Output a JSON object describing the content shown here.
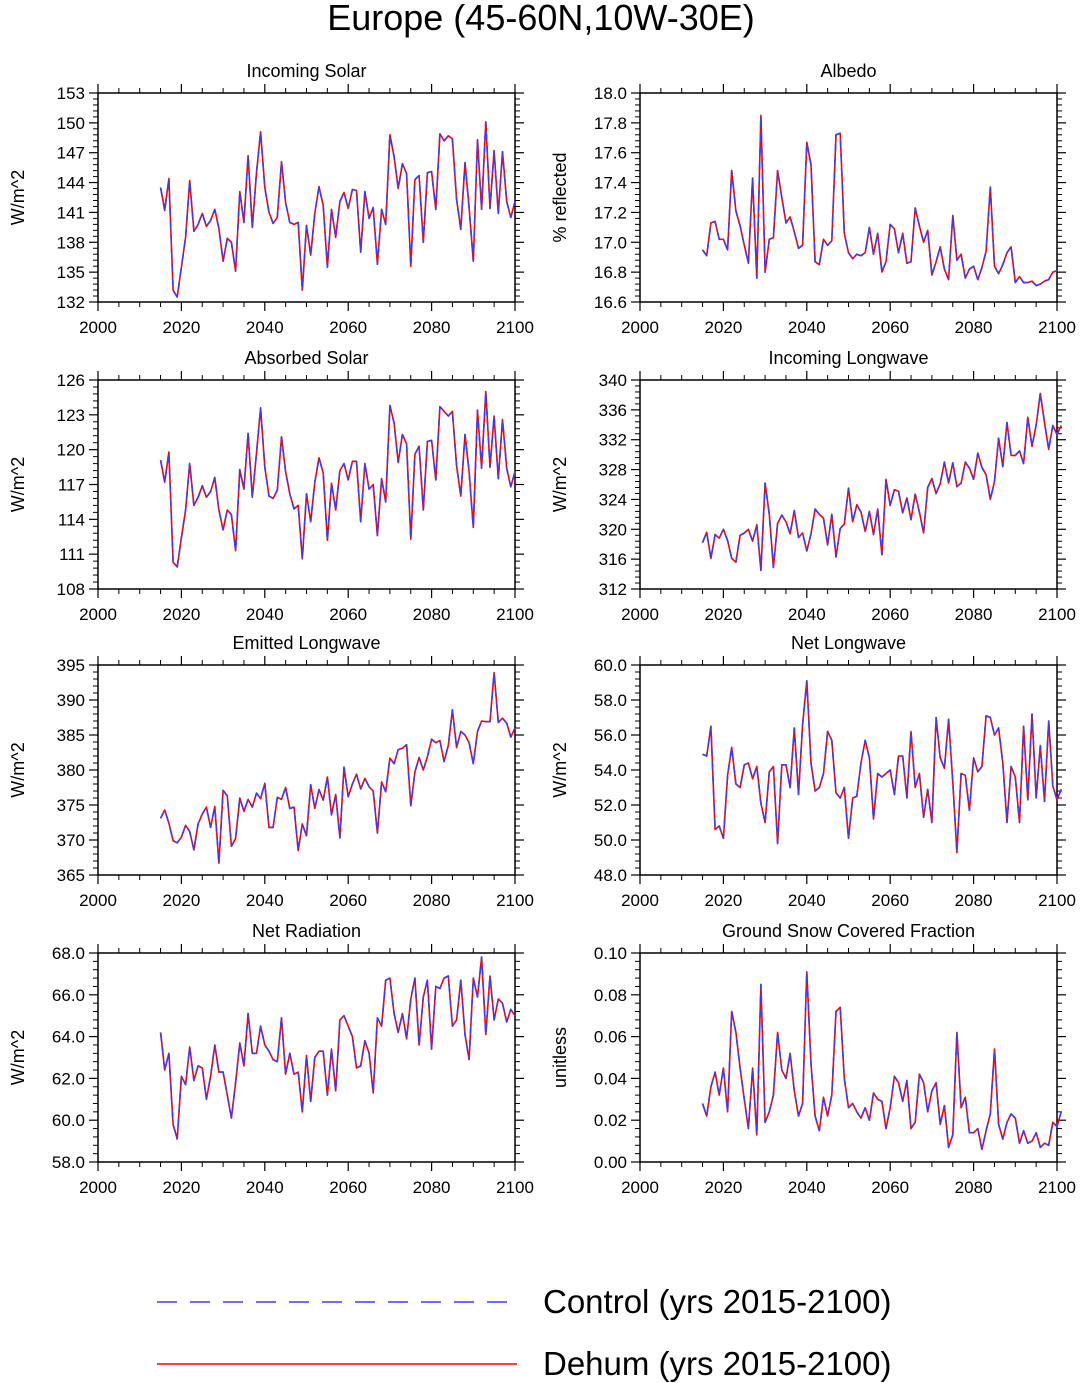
{
  "figure": {
    "title": "Europe (45-60N,10W-30E)"
  },
  "legend": {
    "entries": [
      {
        "label": "Control (yrs 2015-2100)",
        "color": "#3b3bff",
        "style": "dashed"
      },
      {
        "label": "Dehum (yrs 2015-2100)",
        "color": "#ff0000",
        "style": "solid"
      }
    ]
  },
  "chart_data": [
    {
      "type": "line",
      "title": "Incoming Solar",
      "ylabel": "W/m^2",
      "xlim": [
        2000,
        2100
      ],
      "ylim": [
        132,
        153
      ],
      "yticks": [
        132,
        135,
        138,
        141,
        144,
        147,
        150,
        153
      ],
      "ytick_labels": [
        "132",
        "135",
        "138",
        "141",
        "144",
        "147",
        "150",
        "153"
      ],
      "xticks": [
        2000,
        2020,
        2040,
        2060,
        2080,
        2100
      ],
      "x_start": 2015,
      "values": [
        143.5,
        141.2,
        144.4,
        133.2,
        132.5,
        135.5,
        138.5,
        144.2,
        139.1,
        139.8,
        140.9,
        139.6,
        140.2,
        141.3,
        139.4,
        136.1,
        138.4,
        138.0,
        135.1,
        143.1,
        140.0,
        146.7,
        139.5,
        145.0,
        149.1,
        143.5,
        141.0,
        139.9,
        140.5,
        146.1,
        142.0,
        140.0,
        139.8,
        140.0,
        133.2,
        139.7,
        136.7,
        140.9,
        143.6,
        141.7,
        135.5,
        141.3,
        138.5,
        142.1,
        143.0,
        141.4,
        143.3,
        143.2,
        137.0,
        143.1,
        140.4,
        141.5,
        135.8,
        141.3,
        139.8,
        148.8,
        146.6,
        143.4,
        145.9,
        144.9,
        135.6,
        144.3,
        144.7,
        138.0,
        145.0,
        145.1,
        141.3,
        148.9,
        148.2,
        148.7,
        148.4,
        142.3,
        139.3,
        146.0,
        141.5,
        136.1,
        148.3,
        141.3,
        150.1,
        141.4,
        147.2,
        140.9,
        147.1,
        142.1,
        140.5,
        142.1
      ]
    },
    {
      "type": "line",
      "title": "Albedo",
      "ylabel": "% reflected",
      "xlim": [
        2000,
        2100
      ],
      "ylim": [
        16.6,
        18.0
      ],
      "yticks": [
        16.6,
        16.8,
        17.0,
        17.2,
        17.4,
        17.6,
        17.8,
        18.0
      ],
      "ytick_labels": [
        "16.6",
        "16.8",
        "17.0",
        "17.2",
        "17.4",
        "17.6",
        "17.8",
        "18.0"
      ],
      "xticks": [
        2000,
        2020,
        2040,
        2060,
        2080,
        2100
      ],
      "x_start": 2015,
      "values": [
        16.95,
        16.91,
        17.13,
        17.14,
        17.02,
        17.02,
        16.95,
        17.48,
        17.21,
        17.11,
        16.98,
        16.86,
        17.43,
        16.76,
        17.85,
        16.8,
        17.02,
        17.03,
        17.48,
        17.3,
        17.13,
        17.17,
        17.07,
        16.96,
        16.98,
        17.67,
        17.52,
        16.87,
        16.85,
        17.02,
        16.98,
        17.01,
        17.72,
        17.73,
        17.06,
        16.93,
        16.89,
        16.92,
        16.91,
        16.93,
        17.1,
        16.92,
        17.06,
        16.8,
        16.87,
        17.12,
        17.09,
        16.93,
        17.06,
        16.86,
        16.87,
        17.23,
        17.11,
        17.0,
        17.08,
        16.78,
        16.87,
        16.97,
        16.82,
        16.75,
        17.18,
        16.88,
        16.92,
        16.76,
        16.82,
        16.84,
        16.75,
        16.83,
        16.94,
        17.37,
        16.84,
        16.79,
        16.85,
        16.93,
        16.97,
        16.73,
        16.77,
        16.73,
        16.73,
        16.74,
        16.71,
        16.72,
        16.74,
        16.75,
        16.8,
        16.81
      ]
    },
    {
      "type": "line",
      "title": "Absorbed Solar",
      "ylabel": "W/m^2",
      "xlim": [
        2000,
        2100
      ],
      "ylim": [
        108,
        126
      ],
      "yticks": [
        108,
        111,
        114,
        117,
        120,
        123,
        126
      ],
      "ytick_labels": [
        "108",
        "111",
        "114",
        "117",
        "120",
        "123",
        "126"
      ],
      "xticks": [
        2000,
        2020,
        2040,
        2060,
        2080,
        2100
      ],
      "x_start": 2015,
      "values": [
        119.1,
        117.2,
        119.8,
        110.3,
        109.9,
        112.4,
        114.8,
        118.8,
        115.2,
        115.9,
        116.9,
        115.9,
        116.4,
        117.6,
        114.8,
        113.1,
        114.8,
        114.4,
        111.3,
        118.3,
        116.6,
        121.4,
        115.9,
        119.7,
        123.6,
        118.5,
        116.0,
        115.8,
        116.5,
        121.1,
        118.1,
        116.2,
        114.9,
        115.2,
        110.6,
        116.2,
        113.8,
        117.2,
        119.3,
        118.0,
        112.2,
        117.1,
        114.8,
        118.2,
        118.8,
        117.4,
        119.0,
        119.0,
        113.8,
        118.8,
        116.6,
        117.0,
        112.6,
        117.5,
        115.5,
        123.8,
        122.3,
        118.9,
        121.3,
        120.5,
        112.3,
        119.6,
        120.3,
        114.8,
        120.7,
        120.8,
        117.4,
        123.7,
        123.3,
        122.9,
        123.3,
        118.6,
        116.0,
        121.3,
        118.1,
        113.3,
        123.4,
        118.4,
        125.0,
        118.5,
        122.9,
        117.5,
        122.6,
        118.4,
        116.8,
        118.1
      ]
    },
    {
      "type": "line",
      "title": "Incoming Longwave",
      "ylabel": "W/m^2",
      "xlim": [
        2000,
        2100
      ],
      "ylim": [
        312,
        340
      ],
      "yticks": [
        312,
        316,
        320,
        324,
        328,
        332,
        336,
        340
      ],
      "ytick_labels": [
        "312",
        "316",
        "320",
        "324",
        "328",
        "332",
        "336",
        "340"
      ],
      "xticks": [
        2000,
        2020,
        2040,
        2060,
        2080,
        2100
      ],
      "x_start": 2015,
      "values": [
        318.2,
        319.6,
        316.1,
        319.3,
        318.8,
        320.0,
        318.5,
        316.1,
        315.6,
        319.2,
        319.5,
        320.0,
        318.4,
        320.6,
        314.5,
        326.2,
        322.0,
        314.9,
        320.8,
        321.9,
        321.0,
        319.4,
        322.5,
        318.9,
        319.5,
        317.1,
        319.4,
        322.7,
        322.0,
        321.5,
        317.9,
        322.0,
        316.3,
        320.1,
        320.7,
        325.5,
        321.0,
        323.3,
        322.3,
        319.7,
        322.4,
        319.3,
        322.7,
        316.6,
        326.7,
        323.2,
        325.3,
        325.1,
        322.2,
        324.2,
        321.3,
        324.7,
        322.3,
        319.5,
        325.6,
        326.8,
        324.8,
        326.1,
        329.0,
        326.2,
        328.9,
        325.7,
        326.2,
        329.0,
        328.2,
        326.7,
        330.2,
        328.3,
        327.3,
        324.0,
        326.4,
        332.2,
        328.4,
        334.3,
        329.9,
        329.9,
        330.5,
        328.8,
        335.0,
        331.1,
        334.0,
        338.2,
        334.3,
        330.7,
        333.9,
        332.7,
        333.9
      ]
    },
    {
      "type": "line",
      "title": "Emitted Longwave",
      "ylabel": "W/m^2",
      "xlim": [
        2000,
        2100
      ],
      "ylim": [
        365,
        395
      ],
      "yticks": [
        365,
        370,
        375,
        380,
        385,
        390,
        395
      ],
      "ytick_labels": [
        "365",
        "370",
        "375",
        "380",
        "385",
        "390",
        "395"
      ],
      "xticks": [
        2000,
        2020,
        2040,
        2060,
        2080,
        2100
      ],
      "x_start": 2015,
      "values": [
        373.1,
        374.3,
        372.4,
        369.9,
        369.6,
        370.4,
        372.1,
        371.2,
        368.6,
        372.3,
        373.7,
        374.7,
        371.8,
        374.8,
        366.7,
        377.1,
        376.3,
        369.1,
        370.2,
        376.0,
        374.1,
        375.8,
        374.7,
        376.7,
        375.9,
        378.1,
        371.8,
        371.8,
        376.1,
        375.8,
        377.5,
        374.5,
        374.7,
        368.5,
        372.3,
        370.6,
        377.9,
        374.5,
        377.2,
        375.7,
        379.0,
        373.6,
        376.5,
        370.3,
        380.4,
        376.2,
        378.0,
        379.4,
        377.3,
        378.8,
        377.6,
        377.0,
        371.0,
        378.3,
        376.9,
        381.7,
        380.9,
        382.9,
        383.1,
        383.6,
        374.9,
        379.7,
        381.8,
        380.0,
        381.9,
        384.4,
        383.9,
        384.2,
        381.2,
        383.5,
        388.6,
        383.2,
        385.5,
        385.0,
        383.9,
        380.9,
        385.5,
        387.0,
        386.9,
        386.9,
        393.9,
        386.8,
        387.4,
        386.7,
        384.7,
        386.0
      ]
    },
    {
      "type": "line",
      "title": "Net Longwave",
      "ylabel": "W/m^2",
      "xlim": [
        2000,
        2100
      ],
      "ylim": [
        48.0,
        60.0
      ],
      "yticks": [
        48.0,
        50.0,
        52.0,
        54.0,
        56.0,
        58.0,
        60.0
      ],
      "ytick_labels": [
        "48.0",
        "50.0",
        "52.0",
        "54.0",
        "56.0",
        "58.0",
        "60.0"
      ],
      "xticks": [
        2000,
        2020,
        2040,
        2060,
        2080,
        2100
      ],
      "x_start": 2015,
      "values": [
        54.9,
        54.8,
        56.5,
        50.6,
        50.8,
        50.1,
        53.7,
        55.3,
        53.2,
        53.0,
        54.3,
        54.4,
        53.5,
        54.2,
        52.1,
        51.0,
        53.9,
        54.2,
        49.8,
        54.3,
        54.3,
        53.0,
        56.4,
        52.6,
        56.6,
        59.1,
        54.4,
        52.8,
        53.0,
        53.8,
        56.2,
        55.7,
        52.7,
        52.4,
        53.0,
        50.1,
        52.4,
        52.5,
        54.4,
        55.7,
        54.7,
        51.2,
        53.8,
        53.6,
        53.8,
        54.0,
        52.6,
        54.8,
        54.8,
        52.4,
        56.2,
        53.0,
        53.8,
        51.3,
        52.9,
        51.0,
        57.0,
        54.7,
        54.1,
        56.9,
        53.3,
        49.3,
        53.8,
        53.7,
        51.7,
        54.7,
        53.9,
        54.2,
        57.1,
        57.0,
        56.0,
        56.4,
        54.4,
        51.0,
        54.2,
        53.6,
        51.0,
        56.5,
        52.3,
        57.2,
        52.4,
        55.4,
        52.2,
        56.8,
        53.1,
        52.3,
        52.9
      ]
    },
    {
      "type": "line",
      "title": "Net Radiation",
      "ylabel": "W/m^2",
      "xlim": [
        2000,
        2100
      ],
      "ylim": [
        58.0,
        68.0
      ],
      "yticks": [
        58.0,
        60.0,
        62.0,
        64.0,
        66.0,
        68.0
      ],
      "ytick_labels": [
        "58.0",
        "60.0",
        "62.0",
        "64.0",
        "66.0",
        "68.0"
      ],
      "xticks": [
        2000,
        2020,
        2040,
        2060,
        2080,
        2100
      ],
      "x_start": 2015,
      "values": [
        64.2,
        62.4,
        63.2,
        59.8,
        59.1,
        62.1,
        61.7,
        63.5,
        61.9,
        62.6,
        62.5,
        61.0,
        62.1,
        63.6,
        62.3,
        62.3,
        61.2,
        60.1,
        61.8,
        63.7,
        62.6,
        65.1,
        63.2,
        63.2,
        64.5,
        63.6,
        63.3,
        62.9,
        62.8,
        64.9,
        62.2,
        63.2,
        62.2,
        62.3,
        60.4,
        63.1,
        60.9,
        63.0,
        63.3,
        63.3,
        61.2,
        63.4,
        61.4,
        64.8,
        65.0,
        64.5,
        64.0,
        62.5,
        62.6,
        63.8,
        63.2,
        61.3,
        64.9,
        64.5,
        66.7,
        66.8,
        65.1,
        64.2,
        65.1,
        63.9,
        65.8,
        66.8,
        63.6,
        65.9,
        66.7,
        63.4,
        66.4,
        66.3,
        66.8,
        66.9,
        64.5,
        64.8,
        66.7,
        64.1,
        62.9,
        66.8,
        65.9,
        67.8,
        64.1,
        66.9,
        64.8,
        65.8,
        65.6,
        64.7,
        65.3,
        65.0
      ]
    },
    {
      "type": "line",
      "title": "Ground Snow Covered Fraction",
      "ylabel": "unitless",
      "xlim": [
        2000,
        2100
      ],
      "ylim": [
        0.0,
        0.1
      ],
      "yticks": [
        0.0,
        0.02,
        0.04,
        0.06,
        0.08,
        0.1
      ],
      "ytick_labels": [
        "0.00",
        "0.02",
        "0.04",
        "0.06",
        "0.08",
        "0.10"
      ],
      "xticks": [
        2000,
        2020,
        2040,
        2060,
        2080,
        2100
      ],
      "x_start": 2015,
      "values": [
        0.028,
        0.022,
        0.036,
        0.043,
        0.032,
        0.045,
        0.024,
        0.072,
        0.062,
        0.045,
        0.03,
        0.016,
        0.045,
        0.013,
        0.085,
        0.019,
        0.024,
        0.032,
        0.062,
        0.044,
        0.04,
        0.052,
        0.034,
        0.022,
        0.028,
        0.091,
        0.047,
        0.022,
        0.015,
        0.031,
        0.022,
        0.032,
        0.072,
        0.074,
        0.04,
        0.026,
        0.028,
        0.024,
        0.021,
        0.026,
        0.02,
        0.033,
        0.03,
        0.029,
        0.016,
        0.026,
        0.041,
        0.038,
        0.029,
        0.039,
        0.016,
        0.019,
        0.042,
        0.038,
        0.024,
        0.034,
        0.038,
        0.018,
        0.027,
        0.007,
        0.013,
        0.062,
        0.026,
        0.031,
        0.014,
        0.014,
        0.016,
        0.006,
        0.015,
        0.023,
        0.054,
        0.018,
        0.011,
        0.019,
        0.023,
        0.021,
        0.009,
        0.015,
        0.009,
        0.01,
        0.014,
        0.007,
        0.009,
        0.008,
        0.019,
        0.017,
        0.024
      ]
    }
  ]
}
